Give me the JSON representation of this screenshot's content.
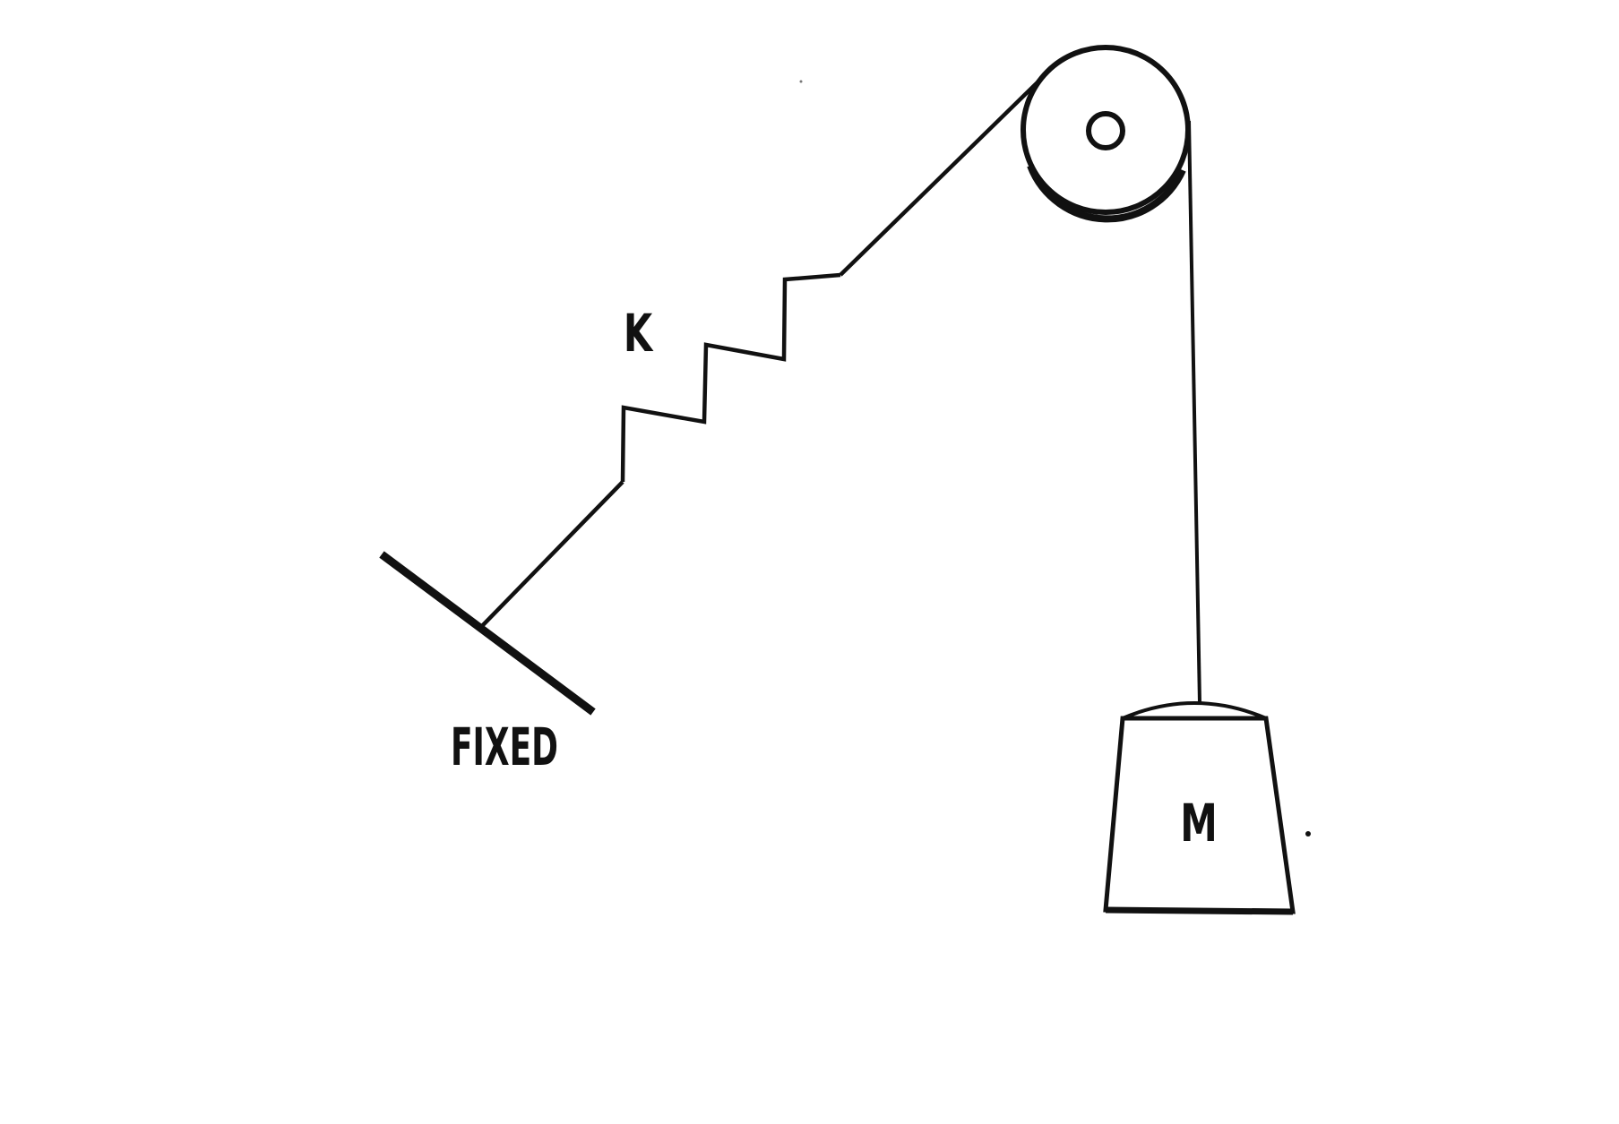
{
  "labels": {
    "spring": "K",
    "fixed": "FIXED",
    "mass": "M"
  },
  "colors": {
    "ink": "#111111",
    "background": "#ffffff"
  }
}
